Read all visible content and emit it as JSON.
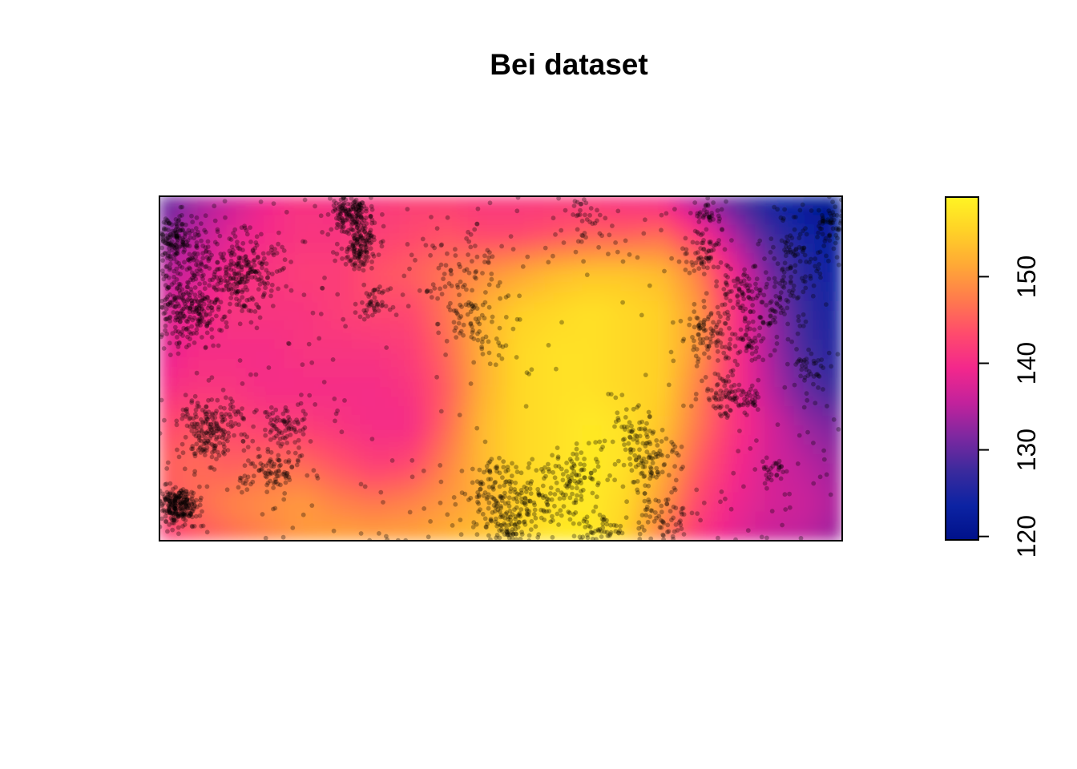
{
  "chart_data": {
    "type": "heatmap",
    "title": "Bei dataset",
    "xlabel": "",
    "ylabel": "",
    "window": {
      "xlim": [
        0,
        1000
      ],
      "ylim": [
        0,
        500
      ]
    },
    "colorbar": {
      "range": [
        119.6,
        159.2
      ],
      "ticks": [
        120,
        130,
        140,
        150
      ],
      "tick_labels": [
        "120",
        "130",
        "140",
        "150"
      ],
      "palette": [
        "#00118a",
        "#0c23a3",
        "#3a2a9d",
        "#7d28a0",
        "#c2229c",
        "#f3278c",
        "#ff4a6d",
        "#ff7a4d",
        "#ffa836",
        "#ffd127",
        "#fff423"
      ]
    },
    "elevation_field": [
      [
        129,
        133,
        136,
        139,
        141,
        140,
        141,
        142,
        142,
        141,
        141,
        141,
        141,
        140,
        139,
        133,
        129,
        124,
        121,
        120
      ],
      [
        132,
        135,
        138,
        140,
        141,
        141,
        142,
        143,
        144,
        143,
        143,
        144,
        145,
        145,
        146,
        141,
        134,
        128,
        124,
        121
      ],
      [
        135,
        137,
        140,
        141,
        142,
        142,
        144,
        145,
        147,
        149,
        151,
        153,
        154,
        154,
        153,
        148,
        139,
        131,
        126,
        123
      ],
      [
        137,
        139,
        141,
        141,
        141,
        142,
        143,
        143,
        147,
        152,
        155,
        156,
        157,
        156,
        155,
        150,
        141,
        133,
        127,
        124
      ],
      [
        138,
        140,
        140,
        140,
        141,
        141,
        141,
        142,
        146,
        152,
        156,
        157,
        157,
        156,
        155,
        150,
        141,
        134,
        128,
        125
      ],
      [
        140,
        141,
        141,
        140,
        140,
        140,
        140,
        141,
        145,
        152,
        156,
        157,
        157,
        156,
        155,
        148,
        141,
        135,
        130,
        127
      ],
      [
        143,
        144,
        143,
        142,
        142,
        141,
        140,
        140,
        146,
        153,
        156,
        157,
        158,
        157,
        154,
        147,
        141,
        137,
        133,
        131
      ],
      [
        145,
        146,
        145,
        146,
        146,
        144,
        142,
        143,
        148,
        153,
        156,
        157,
        158,
        157,
        152,
        145,
        140,
        137,
        135,
        133
      ],
      [
        144,
        146,
        148,
        149,
        150,
        148,
        147,
        148,
        150,
        152,
        155,
        157,
        158,
        156,
        150,
        143,
        139,
        137,
        136,
        134
      ],
      [
        141,
        144,
        146,
        148,
        150,
        151,
        151,
        151,
        152,
        154,
        156,
        158,
        158,
        155,
        147,
        141,
        138,
        136,
        135,
        133
      ]
    ],
    "point_count": 3604,
    "point_color": "#000000",
    "point_alpha": 0.3
  }
}
